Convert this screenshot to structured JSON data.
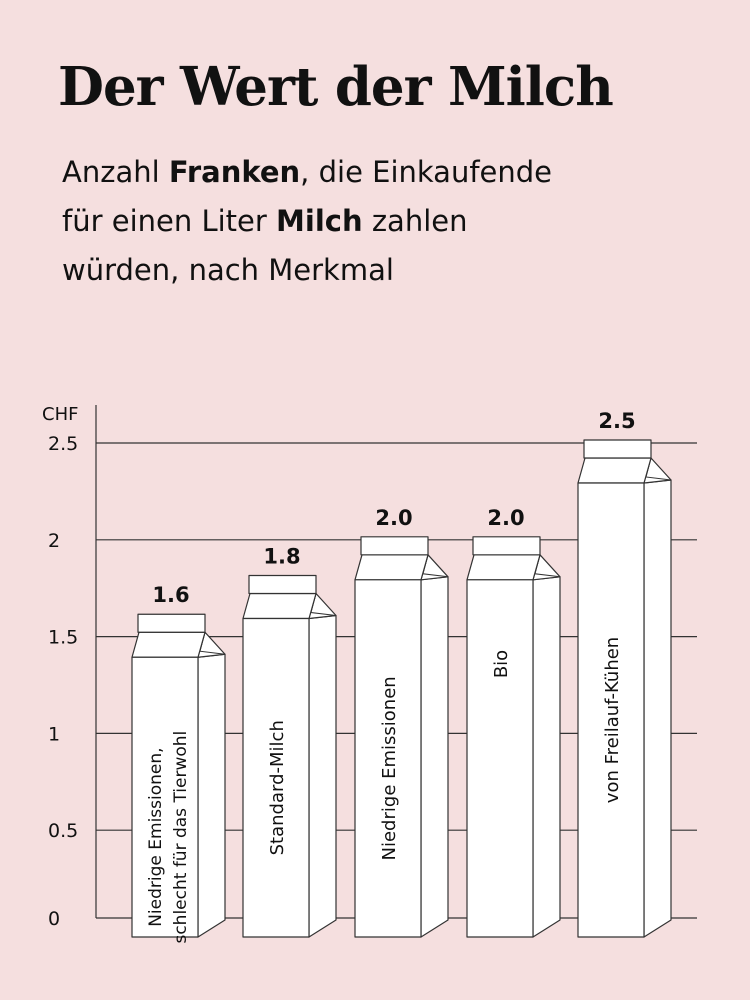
{
  "title": "Der Wert der Milch",
  "subtitle": {
    "line1_a": "Anzahl ",
    "line1_b": "Franken",
    "line1_c": ", die Einkaufende",
    "line2_a": "für einen Liter ",
    "line2_b": "Milch",
    "line2_c": " zahlen",
    "line3": "würden, nach Merkmal"
  },
  "chart_data": {
    "type": "bar",
    "ylabel": "CHF",
    "ylim": [
      0,
      2.5
    ],
    "yticks": [
      0,
      0.5,
      1,
      1.5,
      2,
      2.5
    ],
    "ytick_labels": [
      "0",
      "0.5",
      "1",
      "1.5",
      "2",
      "2.5"
    ],
    "grid": true,
    "categories": [
      [
        "Niedrige Emissionen,",
        "schlecht für das Tierwohl"
      ],
      [
        "Standard-Milch"
      ],
      [
        "Niedrige Emissionen"
      ],
      [
        "Bio"
      ],
      [
        "von Freilauf-Kühen"
      ]
    ],
    "values": [
      1.6,
      1.8,
      2.0,
      2.0,
      2.5
    ],
    "value_labels": [
      "1.6",
      "1.8",
      "2.0",
      "2.0",
      "2.5"
    ],
    "bar_style": "milk-carton",
    "colors": {
      "background": "#f5dfdf",
      "carton": "#ffffff",
      "line": "#333333"
    }
  }
}
